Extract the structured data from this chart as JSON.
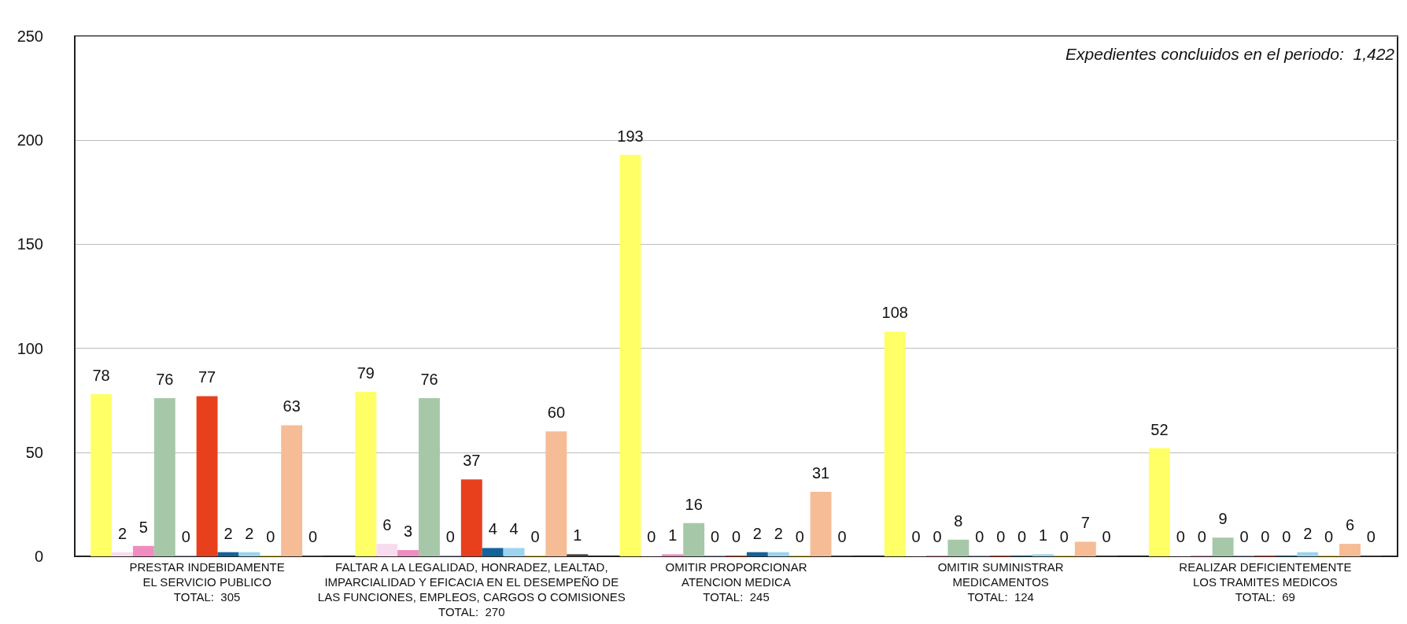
{
  "chart_data": {
    "type": "bar",
    "categories": [
      "PRESTAR INDEBIDAMENTE\nEL SERVICIO PUBLICO\nTOTAL:  305",
      "FALTAR A LA LEGALIDAD, HONRADEZ, LEALTAD,\nIMPARCIALIDAD Y EFICACIA EN EL DESEMPEÑO DE\nLAS FUNCIONES, EMPLEOS, CARGOS O COMISIONES\nTOTAL:  270",
      "OMITIR PROPORCIONAR\nATENCION MEDICA\nTOTAL:  245",
      "OMITIR SUMINISTRAR\nMEDICAMENTOS\nTOTAL:  124",
      "REALIZAR DEFICIENTEMENTE\nLOS TRAMITES MEDICOS\nTOTAL:  69"
    ],
    "series": [
      {
        "color": "#ffff66",
        "values": [
          78,
          79,
          193,
          108,
          52
        ]
      },
      {
        "color": "#f8dcee",
        "values": [
          2,
          6,
          0,
          0,
          0
        ]
      },
      {
        "color": "#f08cc0",
        "values": [
          5,
          3,
          1,
          0,
          0
        ]
      },
      {
        "color": "#a6c8a8",
        "values": [
          76,
          76,
          16,
          8,
          9
        ]
      },
      {
        "color": "#9999cc",
        "values": [
          0,
          0,
          0,
          0,
          0
        ]
      },
      {
        "color": "#e8401c",
        "values": [
          77,
          37,
          0,
          0,
          0
        ]
      },
      {
        "color": "#14649a",
        "values": [
          2,
          4,
          2,
          0,
          0
        ]
      },
      {
        "color": "#9cd4f0",
        "values": [
          2,
          4,
          2,
          1,
          2
        ]
      },
      {
        "color": "#ffcc00",
        "values": [
          0,
          0,
          0,
          0,
          0
        ]
      },
      {
        "color": "#f6bc96",
        "values": [
          63,
          60,
          31,
          7,
          6
        ]
      },
      {
        "color": "#404040",
        "values": [
          0,
          1,
          0,
          0,
          0
        ]
      }
    ],
    "ylim": [
      0,
      250
    ],
    "yticks": [
      0,
      50,
      100,
      150,
      200,
      250
    ],
    "grid": "y",
    "data_labels": true,
    "annotations": [
      "Expedientes concluidos en el periodo:  1,422"
    ]
  }
}
